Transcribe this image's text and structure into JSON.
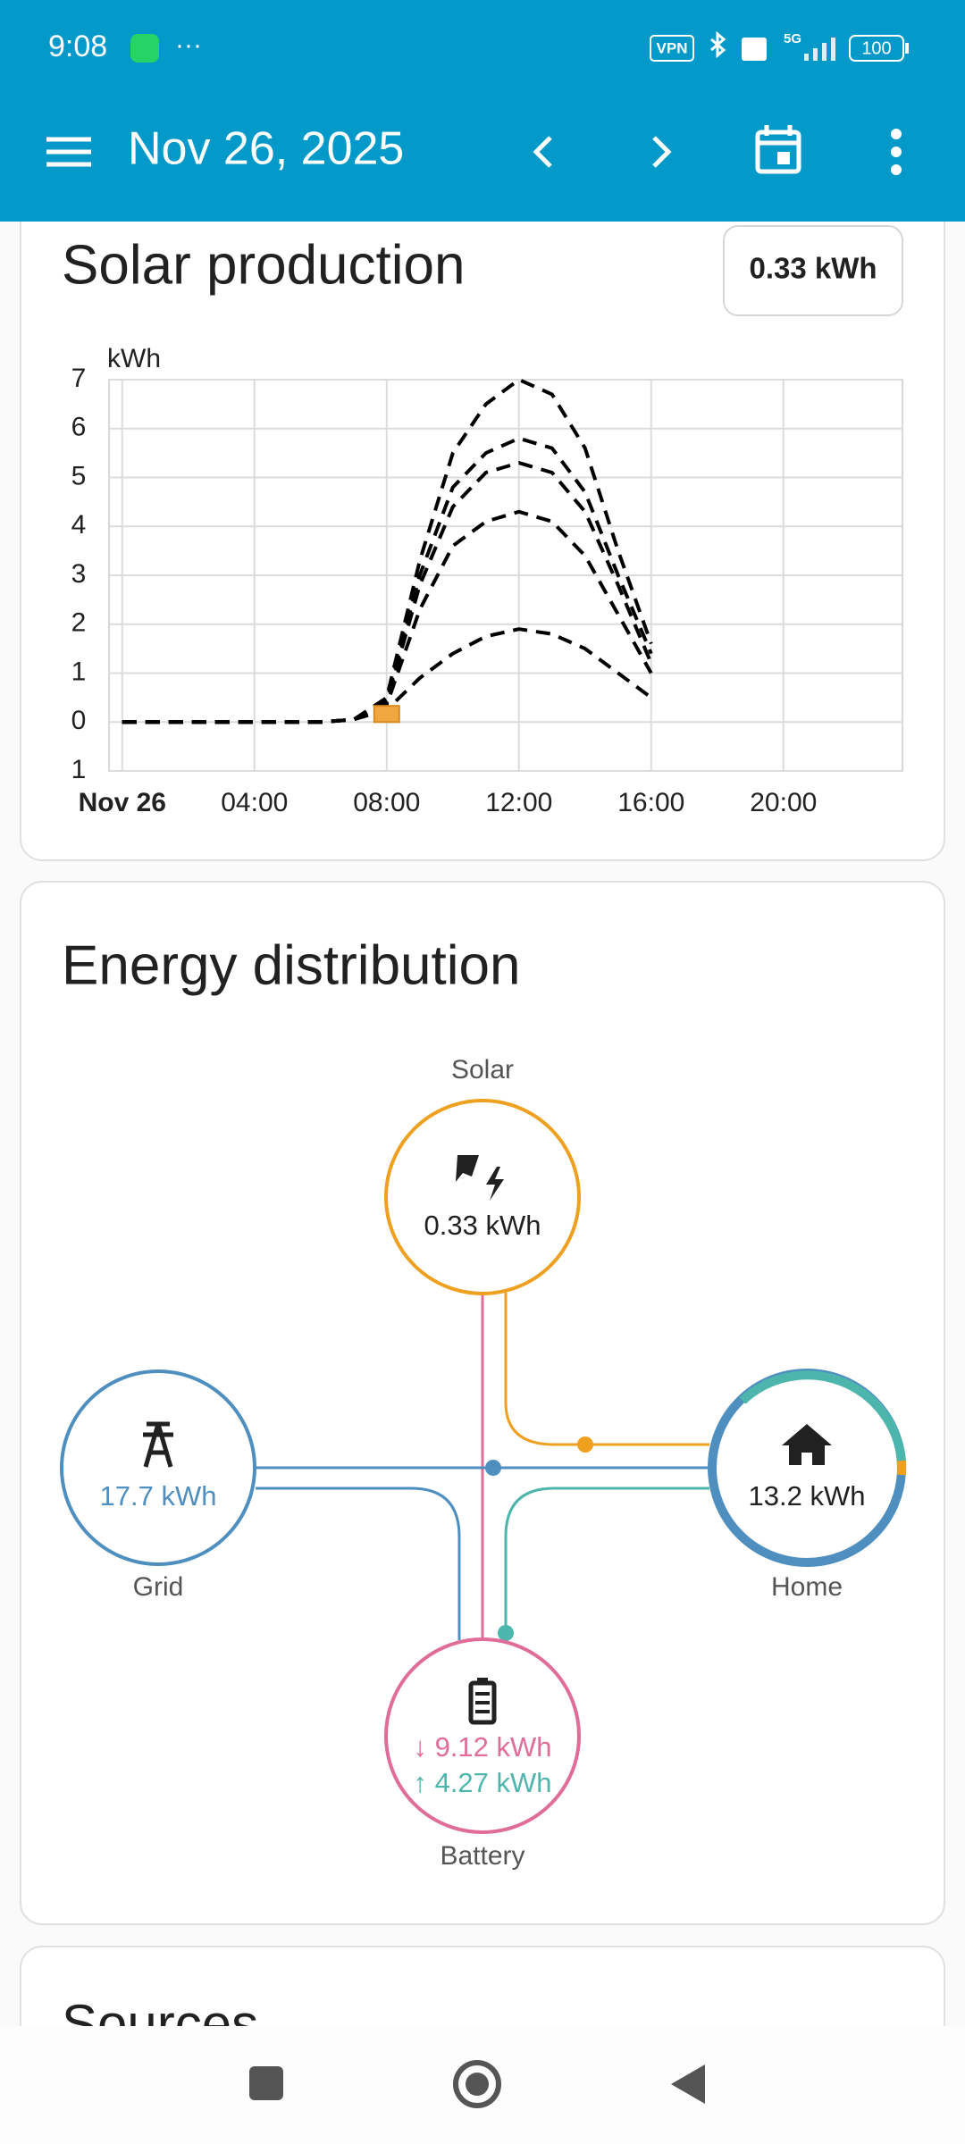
{
  "status_bar": {
    "time": "9:08",
    "more": "···",
    "vpn": "VPN",
    "network": "5G",
    "battery": "100"
  },
  "app_bar": {
    "date": "Nov 26, 2025"
  },
  "solar_card": {
    "title": "Solar production",
    "total": "0.33 kWh"
  },
  "chart_data": {
    "type": "line",
    "y_label": "kWh",
    "x": [
      0,
      1,
      2,
      3,
      4,
      5,
      6,
      7,
      8,
      9,
      10,
      11,
      12,
      13,
      14,
      15,
      16
    ],
    "series": [
      {
        "color": "#000000",
        "style": "dashed",
        "values": [
          0,
          0,
          0,
          0,
          0,
          0,
          0,
          0.05,
          0.5,
          3.3,
          5.5,
          6.5,
          7.0,
          6.7,
          5.6,
          3.5,
          1.6
        ]
      },
      {
        "color": "#000000",
        "style": "dashed",
        "values": [
          0,
          0,
          0,
          0,
          0,
          0,
          0,
          0.05,
          0.45,
          3.0,
          4.8,
          5.5,
          5.8,
          5.6,
          4.7,
          3.0,
          1.4
        ]
      },
      {
        "color": "#000000",
        "style": "dashed",
        "values": [
          0,
          0,
          0,
          0,
          0,
          0,
          0,
          0.05,
          0.4,
          2.8,
          4.4,
          5.1,
          5.3,
          5.1,
          4.3,
          2.8,
          1.2
        ]
      },
      {
        "color": "#000000",
        "style": "dashed",
        "values": [
          0,
          0,
          0,
          0,
          0,
          0,
          0,
          0.05,
          0.35,
          2.3,
          3.6,
          4.1,
          4.3,
          4.1,
          3.4,
          2.2,
          1.0
        ]
      },
      {
        "color": "#000000",
        "style": "dashed",
        "values": [
          0,
          0,
          0,
          0,
          0,
          0,
          0,
          0.05,
          0.25,
          0.9,
          1.4,
          1.75,
          1.9,
          1.8,
          1.5,
          1.0,
          0.5
        ]
      },
      {
        "type": "bar",
        "color": "#f0a740",
        "x": [
          8
        ],
        "values": [
          0.33
        ]
      }
    ],
    "xlim": [
      -0.4,
      23.6
    ],
    "xticks": [
      {
        "value": 0,
        "label": "Nov 26"
      },
      {
        "value": 4,
        "label": "04:00"
      },
      {
        "value": 8,
        "label": "08:00"
      },
      {
        "value": 12,
        "label": "12:00"
      },
      {
        "value": 16,
        "label": "16:00"
      },
      {
        "value": 20,
        "label": "20:00"
      }
    ],
    "ylim": [
      -1,
      7
    ],
    "yticks": [
      7,
      6,
      5,
      4,
      3,
      2,
      1,
      0,
      {
        "value": -1,
        "label": "1"
      }
    ],
    "grid": true
  },
  "energy_card": {
    "title": "Energy distribution",
    "solar": {
      "label": "Solar",
      "value": "0.33 kWh"
    },
    "grid": {
      "label": "Grid",
      "value": "17.7 kWh"
    },
    "home": {
      "label": "Home",
      "value": "13.2 kWh"
    },
    "battery": {
      "label": "Battery",
      "in": "↓ 9.12 kWh",
      "out": "↑ 4.27 kWh"
    }
  },
  "sources_card": {
    "title": "Sources"
  }
}
